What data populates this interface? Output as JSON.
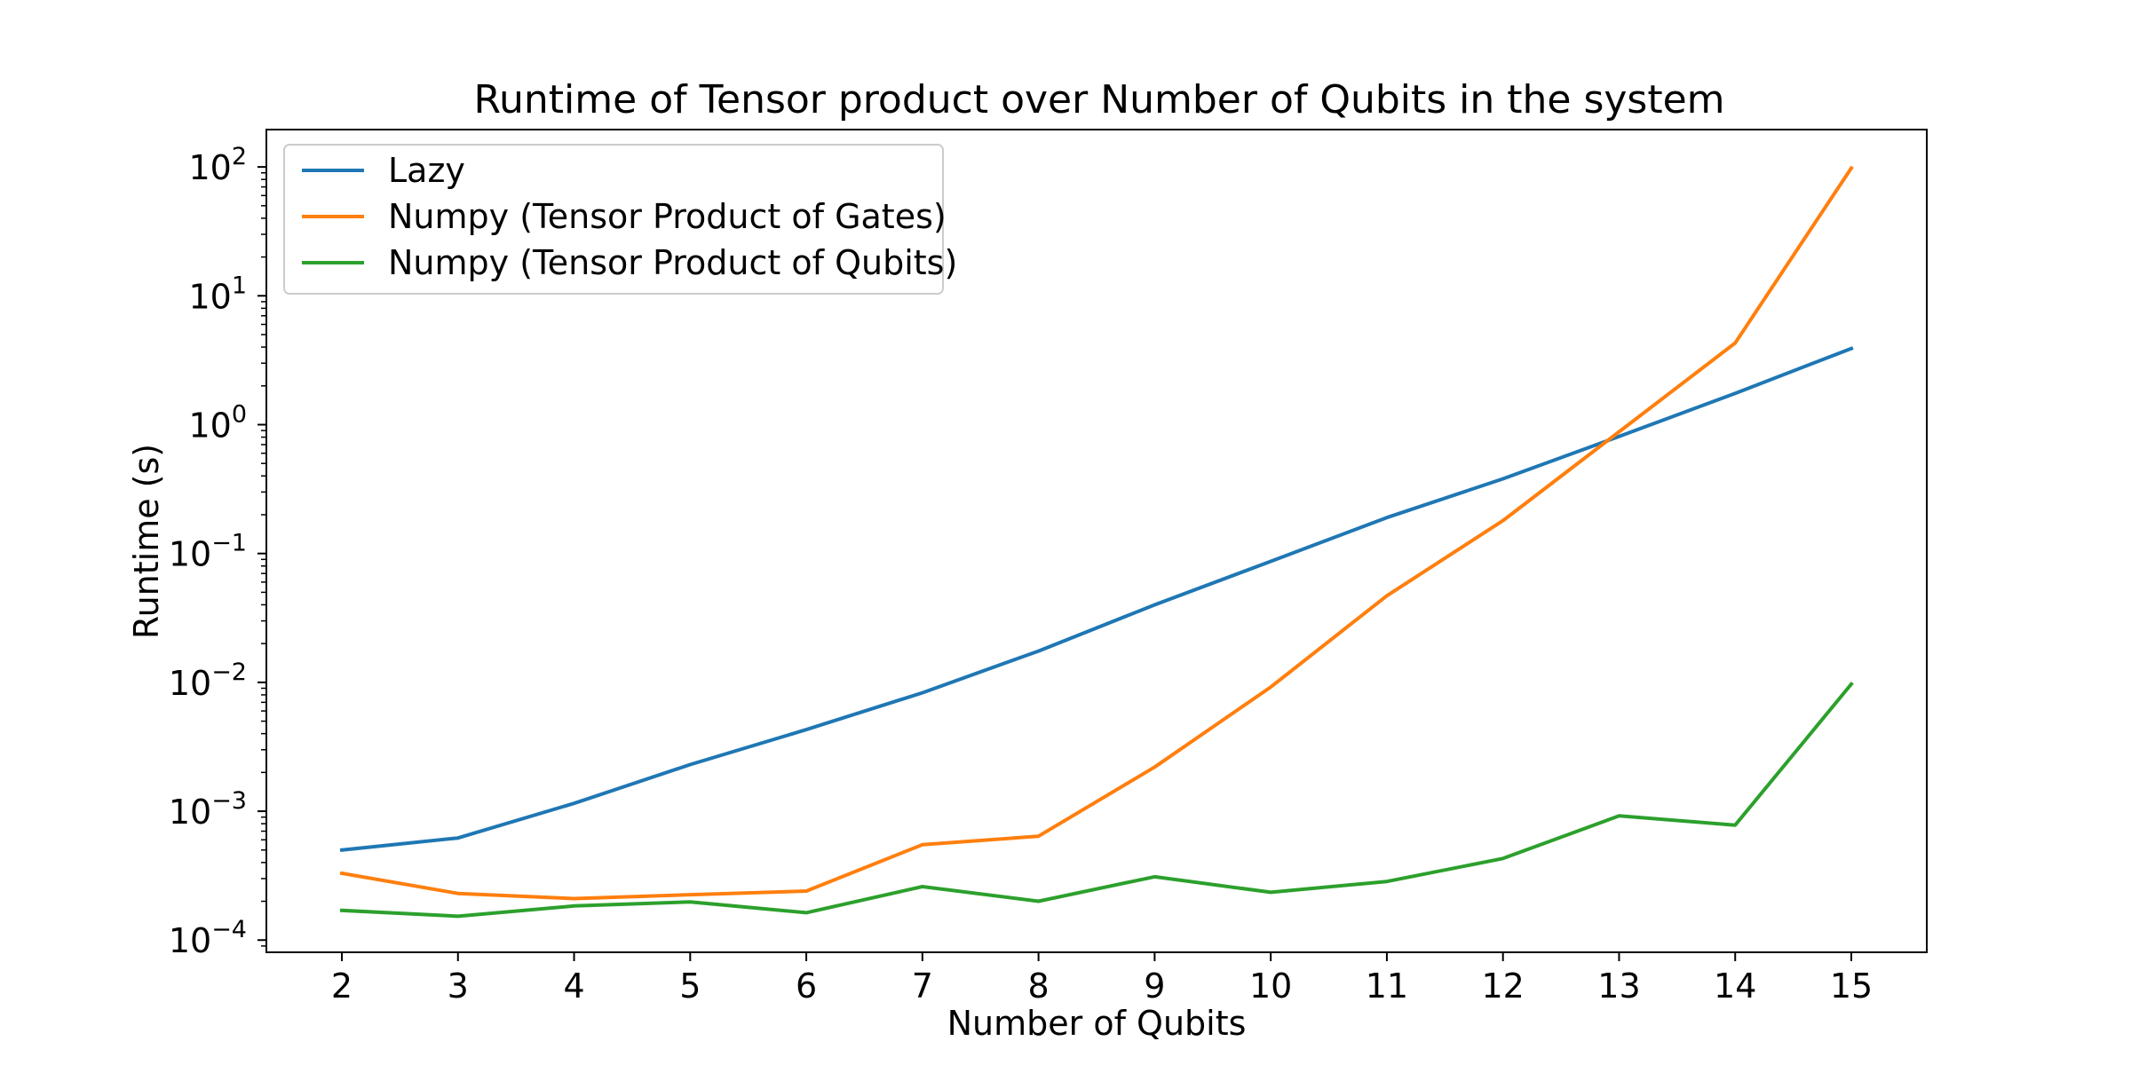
{
  "chart_data": {
    "type": "line",
    "title": "Runtime of Tensor product over Number of Qubits in the system",
    "xlabel": "Number of Qubits",
    "ylabel": "Runtime (s)",
    "yscale": "log",
    "xlim": [
      1.35,
      15.65
    ],
    "ylim": [
      8.04e-05,
      195
    ],
    "x": [
      2,
      3,
      4,
      5,
      6,
      7,
      8,
      9,
      10,
      11,
      12,
      13,
      14,
      15
    ],
    "x_ticks": [
      "2",
      "3",
      "4",
      "5",
      "6",
      "7",
      "8",
      "9",
      "10",
      "11",
      "12",
      "13",
      "14",
      "15"
    ],
    "y_ticks": [
      {
        "value": 0.0001,
        "base": "10",
        "exp": "−4"
      },
      {
        "value": 0.001,
        "base": "10",
        "exp": "−3"
      },
      {
        "value": 0.01,
        "base": "10",
        "exp": "−2"
      },
      {
        "value": 0.1,
        "base": "10",
        "exp": "−1"
      },
      {
        "value": 1,
        "base": "10",
        "exp": "0"
      },
      {
        "value": 10,
        "base": "10",
        "exp": "1"
      },
      {
        "value": 100,
        "base": "10",
        "exp": "2"
      }
    ],
    "grid": false,
    "legend_position": "top-left",
    "series": [
      {
        "name": "Lazy",
        "color": "#1f77b4",
        "values": [
          0.0005,
          0.00062,
          0.00115,
          0.0023,
          0.0043,
          0.0083,
          0.0175,
          0.04,
          0.087,
          0.19,
          0.38,
          0.81,
          1.75,
          3.9
        ]
      },
      {
        "name": "Numpy (Tensor Product of Gates)",
        "color": "#ff7f0e",
        "values": [
          0.00033,
          0.00023,
          0.00021,
          0.000225,
          0.00024,
          0.00055,
          0.00064,
          0.0022,
          0.0092,
          0.047,
          0.18,
          0.88,
          4.3,
          98
        ]
      },
      {
        "name": "Numpy (Tensor Product of Qubits)",
        "color": "#2ca02c",
        "values": [
          0.00017,
          0.000153,
          0.000184,
          0.000198,
          0.000163,
          0.00026,
          0.0002,
          0.00031,
          0.000235,
          0.000285,
          0.00043,
          0.00092,
          0.00078,
          0.0097
        ]
      }
    ]
  }
}
